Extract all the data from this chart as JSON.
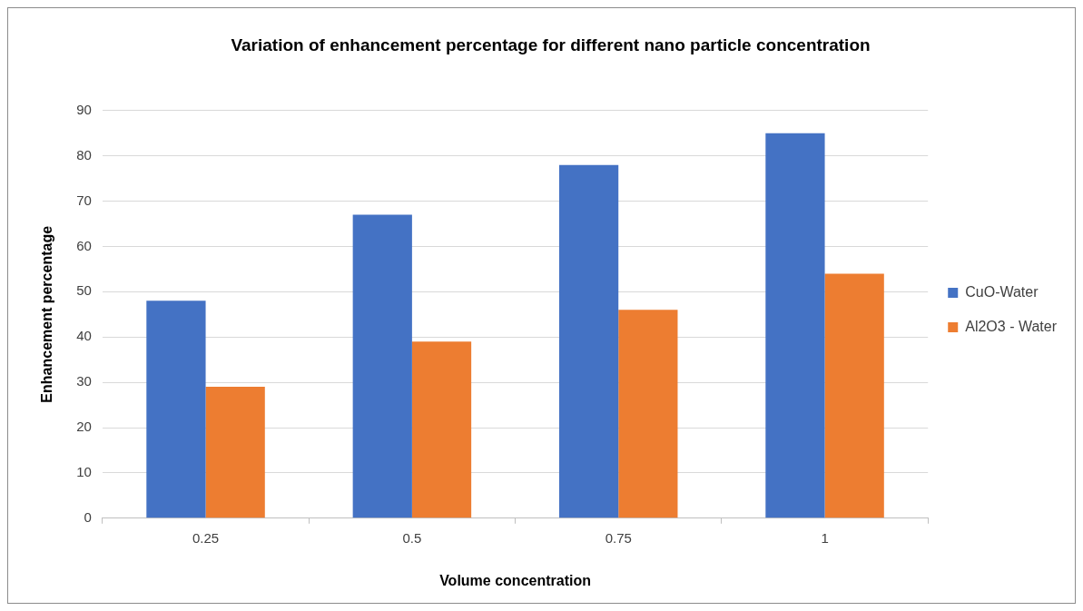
{
  "chart_data": {
    "type": "bar",
    "title": "Variation of enhancement percentage for different nano particle concentration",
    "xlabel": "Volume concentration",
    "ylabel": "Enhancement percentage",
    "categories": [
      "0.25",
      "0.5",
      "0.75",
      "1"
    ],
    "series": [
      {
        "name": "CuO-Water",
        "color": "#4472c4",
        "values": [
          48,
          67,
          78,
          85
        ]
      },
      {
        "name": "Al2O3 - Water",
        "color": "#ed7d31",
        "values": [
          29,
          39,
          46,
          54
        ]
      }
    ],
    "ylim": [
      0,
      90
    ],
    "yticks": [
      0,
      10,
      20,
      30,
      40,
      50,
      60,
      70,
      80,
      90
    ],
    "grid": "y",
    "legend": "right"
  }
}
